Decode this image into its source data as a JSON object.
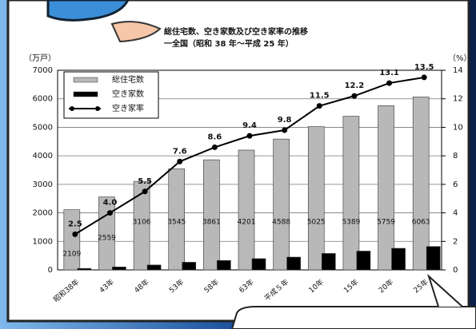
{
  "chart_data": {
    "type": "bar",
    "title": "総住宅数、空き家数及び空き家率の推移",
    "subtitle": "一全国（昭和 38 年～平成 25 年）",
    "y_label": "（万戸）",
    "y2_label": "（%）",
    "categories": [
      "昭和38年",
      "43年",
      "48年",
      "53年",
      "58年",
      "63年",
      "平成５年",
      "10年",
      "15年",
      "20年",
      "25年"
    ],
    "series": [
      {
        "name": "総住宅数",
        "color": "#b8b8b8",
        "values": [
          2109,
          2559,
          3106,
          3545,
          3861,
          4201,
          4588,
          5025,
          5389,
          5759,
          6063
        ]
      },
      {
        "name": "空き家数",
        "color": "#000000",
        "values": [
          52,
          103,
          172,
          268,
          330,
          394,
          448,
          576,
          659,
          757,
          820
        ]
      },
      {
        "name": "空き家率",
        "color": "#000000",
        "type": "line",
        "axis": "y2",
        "values": [
          2.5,
          4.0,
          5.5,
          7.6,
          8.6,
          9.4,
          9.8,
          11.5,
          12.2,
          13.1,
          13.5
        ],
        "value_labels": [
          "2.5",
          "4.0",
          "5.5",
          "7.6",
          "8.6",
          "9.4",
          "9.8",
          "11.5",
          "12.2",
          "13.1",
          "13.5"
        ]
      }
    ],
    "ylim": [
      0,
      7000
    ],
    "yticks": [
      0,
      1000,
      2000,
      3000,
      4000,
      5000,
      6000,
      7000
    ],
    "y2lim": [
      0,
      14
    ],
    "y2ticks": [
      0,
      2,
      4,
      6,
      8,
      10,
      12,
      14
    ],
    "grid": true
  }
}
